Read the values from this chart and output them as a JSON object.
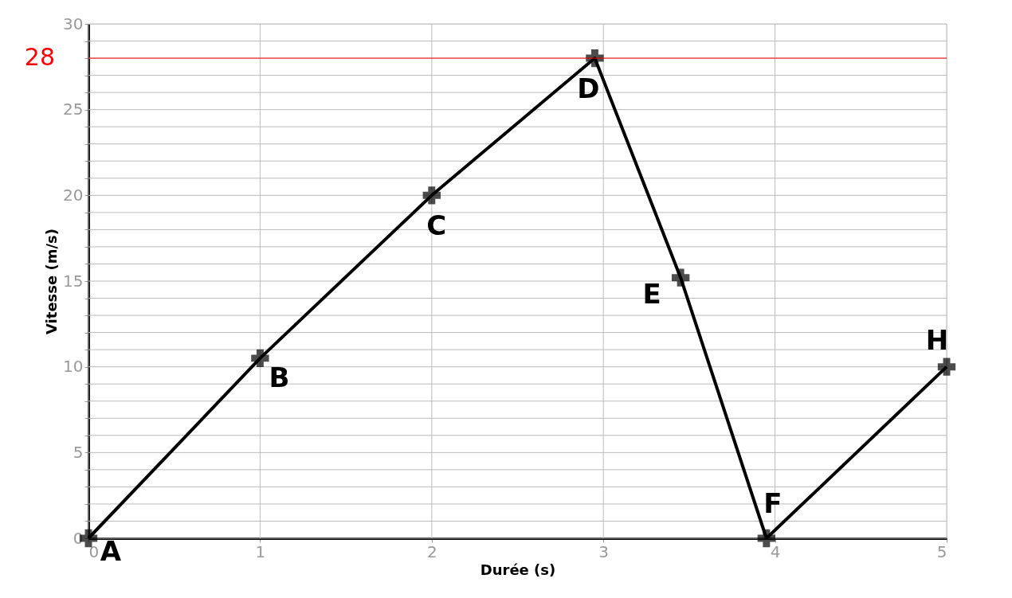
{
  "chart_data": {
    "type": "line",
    "xlabel": "Durée (s)",
    "ylabel": "Vitesse (m/s)",
    "x": [
      0,
      1,
      2,
      2.95,
      3.45,
      3.95,
      5
    ],
    "series": [
      {
        "color": "#000000",
        "values": [
          0,
          10.5,
          20,
          28,
          15.2,
          0,
          10
        ]
      }
    ],
    "xlim": [
      0,
      5
    ],
    "xticks": [
      0,
      1,
      2,
      3,
      4,
      5
    ],
    "ylim": [
      0,
      30
    ],
    "yticks": [
      0,
      {
        "value": 1,
        "label": null
      },
      {
        "value": 2,
        "label": null
      },
      {
        "value": 3,
        "label": null
      },
      {
        "value": 4,
        "label": null
      },
      5,
      {
        "value": 6,
        "label": null
      },
      {
        "value": 7,
        "label": null
      },
      {
        "value": 8,
        "label": null
      },
      {
        "value": 9,
        "label": null
      },
      10,
      {
        "value": 11,
        "label": null
      },
      {
        "value": 12,
        "label": null
      },
      {
        "value": 13,
        "label": null
      },
      {
        "value": 14,
        "label": null
      },
      15,
      {
        "value": 16,
        "label": null
      },
      {
        "value": 17,
        "label": null
      },
      {
        "value": 18,
        "label": null
      },
      {
        "value": 19,
        "label": null
      },
      20,
      {
        "value": 21,
        "label": null
      },
      {
        "value": 22,
        "label": null
      },
      {
        "value": 23,
        "label": null
      },
      {
        "value": 24,
        "label": null
      },
      25,
      {
        "value": 26,
        "label": null
      },
      {
        "value": 27,
        "label": null
      },
      {
        "value": 28,
        "label": null
      },
      {
        "value": 29,
        "label": null
      },
      30
    ],
    "grid": true,
    "marker": "cross",
    "line_style": "solid",
    "ref_lines": [
      {
        "axis": "y",
        "value": 28,
        "label": "28",
        "color": "#ff0000"
      }
    ],
    "annotations": [
      {
        "text": "A",
        "x": 0,
        "y": 0
      },
      {
        "text": "B",
        "x": 1,
        "y": 10.5
      },
      {
        "text": "C",
        "x": 2,
        "y": 20
      },
      {
        "text": "D",
        "x": 2.95,
        "y": 28
      },
      {
        "text": "E",
        "x": 3.45,
        "y": 15.2
      },
      {
        "text": "F",
        "x": 3.95,
        "y": 0
      },
      {
        "text": "H",
        "x": 5,
        "y": 10
      }
    ]
  }
}
